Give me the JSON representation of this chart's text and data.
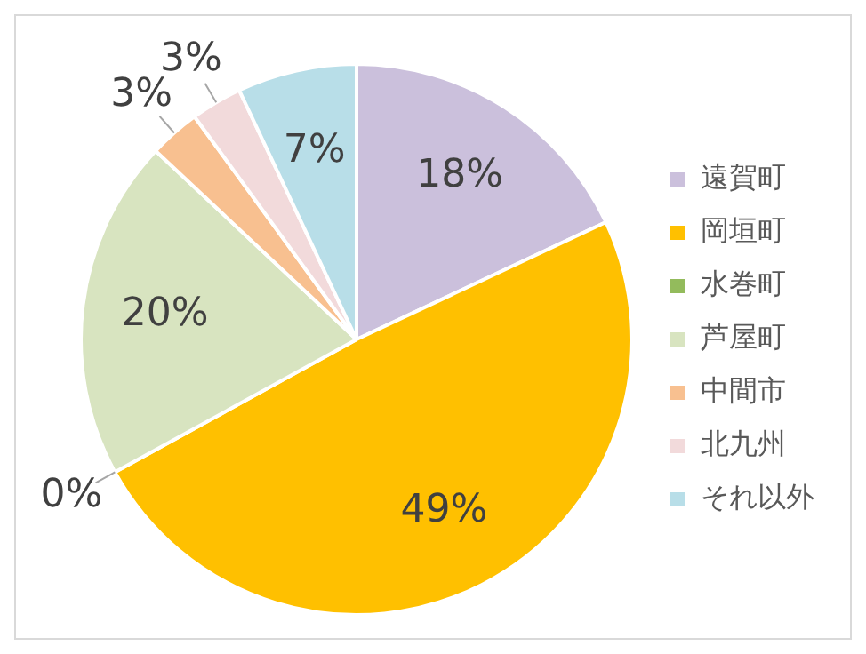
{
  "chart_data": {
    "type": "pie",
    "categories": [
      "遠賀町",
      "岡垣町",
      "水巻町",
      "芦屋町",
      "中間市",
      "北九州",
      "それ以外"
    ],
    "values": [
      18,
      49,
      0,
      20,
      3,
      3,
      7
    ],
    "value_labels": [
      "18%",
      "49%",
      "0%",
      "20%",
      "3%",
      "3%",
      "7%"
    ],
    "colors": [
      "#cbc0dc",
      "#ffc000",
      "#93bb5c",
      "#d8e4c0",
      "#f8c090",
      "#f2dadb",
      "#b8dee8"
    ],
    "legend": "right"
  }
}
